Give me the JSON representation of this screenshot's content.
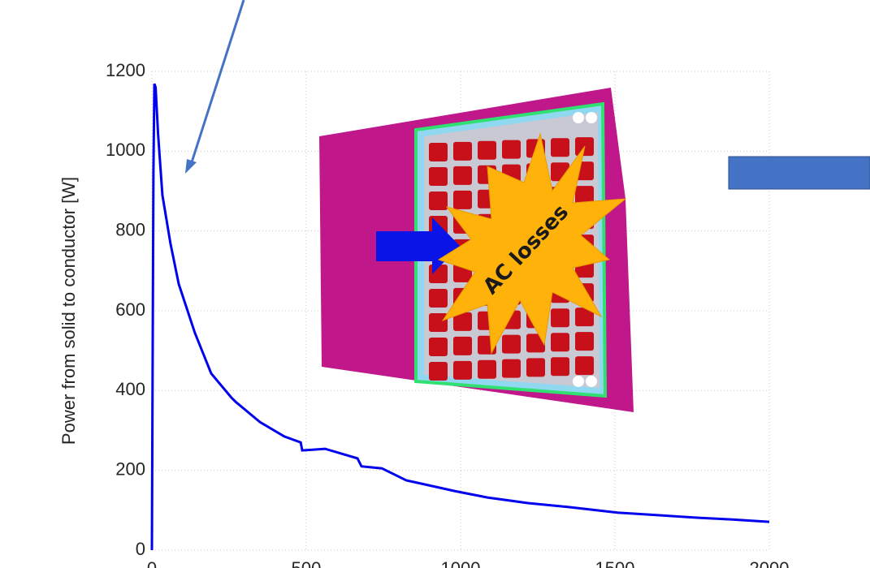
{
  "chart_data": {
    "type": "line",
    "y_label": "Power from solid to conductor [W]",
    "annotation": "AC losses",
    "xlim": [
      0,
      2000
    ],
    "xticks": [
      0,
      500,
      1000,
      1500,
      2000
    ],
    "ylim": [
      0,
      1200
    ],
    "yticks": [
      0,
      200,
      400,
      600,
      800,
      1000,
      1200
    ],
    "grid": true,
    "series": [
      {
        "color": "#0000ee",
        "x": [
          0,
          2,
          5,
          8,
          12,
          20,
          34,
          60,
          87,
          139,
          192,
          258,
          271,
          350,
          429,
          482,
          487,
          561,
          666,
          679,
          745,
          824,
          982,
          1087,
          1218,
          1350,
          1508,
          1613,
          1771,
          1876,
          2000
        ],
        "values": [
          0,
          400,
          950,
          1169,
          1160,
          1043,
          890,
          769,
          667,
          545,
          443,
          382,
          372,
          321,
          285,
          270,
          250,
          254,
          230,
          210,
          205,
          175,
          148,
          132,
          118,
          108,
          94,
          89,
          81,
          77,
          71
        ]
      }
    ]
  }
}
